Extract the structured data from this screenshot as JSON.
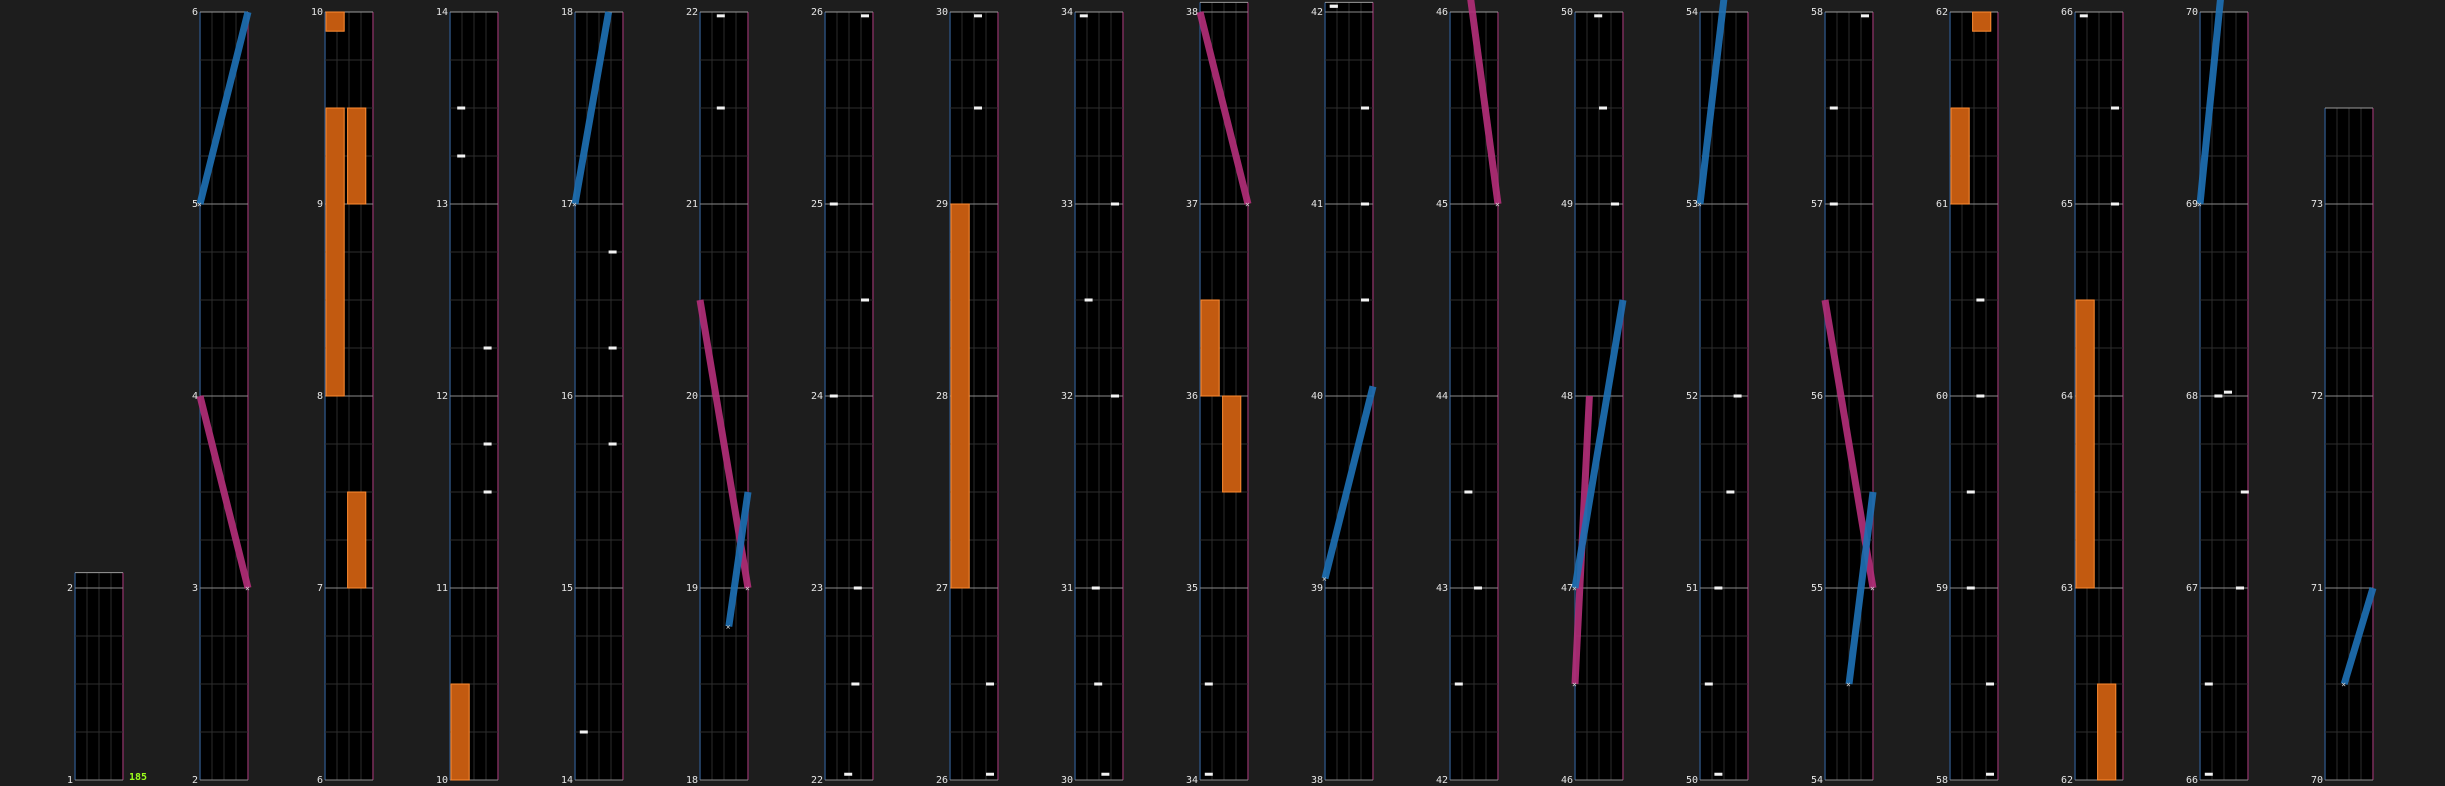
{
  "chart_data": {
    "type": "chart-editor-timeline",
    "combo": "185",
    "measure_labels": [
      {
        "text": "1",
        "beat": 1,
        "c": 0
      },
      {
        "text": "2",
        "beat": 2,
        "c": 0
      },
      {
        "text": "2",
        "beat": 2,
        "c": 1
      },
      {
        "text": "3",
        "beat": 3,
        "c": 1
      },
      {
        "text": "4",
        "beat": 4,
        "c": 1
      },
      {
        "text": "5",
        "beat": 5,
        "c": 1
      },
      {
        "text": "6",
        "beat": 6,
        "c": 1
      },
      {
        "text": "6",
        "beat": 6,
        "c": 2
      },
      {
        "text": "7",
        "beat": 7,
        "c": 2
      },
      {
        "text": "8",
        "beat": 8,
        "c": 2
      },
      {
        "text": "9",
        "beat": 9,
        "c": 2
      },
      {
        "text": "10",
        "beat": 10,
        "c": 2
      },
      {
        "text": "10",
        "beat": 10,
        "c": 3
      },
      {
        "text": "11",
        "beat": 11,
        "c": 3
      },
      {
        "text": "12",
        "beat": 12,
        "c": 3
      },
      {
        "text": "13",
        "beat": 13,
        "c": 3
      },
      {
        "text": "14",
        "beat": 14,
        "c": 3
      },
      {
        "text": "14",
        "beat": 14,
        "c": 4
      },
      {
        "text": "15",
        "beat": 15,
        "c": 4
      },
      {
        "text": "16",
        "beat": 16,
        "c": 4
      },
      {
        "text": "17",
        "beat": 17,
        "c": 4
      },
      {
        "text": "18",
        "beat": 18,
        "c": 4
      },
      {
        "text": "18",
        "beat": 18,
        "c": 5
      },
      {
        "text": "19",
        "beat": 19,
        "c": 5
      },
      {
        "text": "20",
        "beat": 20,
        "c": 5
      },
      {
        "text": "21",
        "beat": 21,
        "c": 5
      },
      {
        "text": "22",
        "beat": 22,
        "c": 5
      },
      {
        "text": "22",
        "beat": 22,
        "c": 6
      },
      {
        "text": "23",
        "beat": 23,
        "c": 6
      },
      {
        "text": "24",
        "beat": 24,
        "c": 6
      },
      {
        "text": "25",
        "beat": 25,
        "c": 6
      },
      {
        "text": "26",
        "beat": 26,
        "c": 6
      },
      {
        "text": "26",
        "beat": 26,
        "c": 7
      },
      {
        "text": "27",
        "beat": 27,
        "c": 7
      },
      {
        "text": "28",
        "beat": 28,
        "c": 7
      },
      {
        "text": "29",
        "beat": 29,
        "c": 7
      },
      {
        "text": "30",
        "beat": 30,
        "c": 7
      },
      {
        "text": "30",
        "beat": 30,
        "c": 8
      },
      {
        "text": "31",
        "beat": 31,
        "c": 8
      },
      {
        "text": "32",
        "beat": 32,
        "c": 8
      },
      {
        "text": "33",
        "beat": 33,
        "c": 8
      },
      {
        "text": "34",
        "beat": 34,
        "c": 8
      },
      {
        "text": "34",
        "beat": 34,
        "c": 9
      },
      {
        "text": "35",
        "beat": 35,
        "c": 9
      },
      {
        "text": "36",
        "beat": 36,
        "c": 9
      },
      {
        "text": "37",
        "beat": 37,
        "c": 9
      },
      {
        "text": "38",
        "beat": 38,
        "c": 9
      },
      {
        "text": "38",
        "beat": 38,
        "c": 10
      },
      {
        "text": "39",
        "beat": 39,
        "c": 10
      },
      {
        "text": "40",
        "beat": 40,
        "c": 10
      },
      {
        "text": "41",
        "beat": 41,
        "c": 10
      },
      {
        "text": "42",
        "beat": 42,
        "c": 10
      },
      {
        "text": "42",
        "beat": 42,
        "c": 11
      },
      {
        "text": "43",
        "beat": 43,
        "c": 11
      },
      {
        "text": "44",
        "beat": 44,
        "c": 11
      },
      {
        "text": "45",
        "beat": 45,
        "c": 11
      },
      {
        "text": "46",
        "beat": 46,
        "c": 11
      },
      {
        "text": "46",
        "beat": 46,
        "c": 12
      },
      {
        "text": "47",
        "beat": 47,
        "c": 12
      },
      {
        "text": "48",
        "beat": 48,
        "c": 12
      },
      {
        "text": "49",
        "beat": 49,
        "c": 12
      },
      {
        "text": "50",
        "beat": 50,
        "c": 12
      },
      {
        "text": "50",
        "beat": 50,
        "c": 13
      },
      {
        "text": "51",
        "beat": 51,
        "c": 13
      },
      {
        "text": "52",
        "beat": 52,
        "c": 13
      },
      {
        "text": "53",
        "beat": 53,
        "c": 13
      },
      {
        "text": "54",
        "beat": 54,
        "c": 13
      },
      {
        "text": "54",
        "beat": 54,
        "c": 14
      },
      {
        "text": "55",
        "beat": 55,
        "c": 14
      },
      {
        "text": "56",
        "beat": 56,
        "c": 14
      },
      {
        "text": "57",
        "beat": 57,
        "c": 14
      },
      {
        "text": "58",
        "beat": 58,
        "c": 14
      },
      {
        "text": "58",
        "beat": 58,
        "c": 15
      },
      {
        "text": "59",
        "beat": 59,
        "c": 15
      },
      {
        "text": "60",
        "beat": 60,
        "c": 15
      },
      {
        "text": "61",
        "beat": 61,
        "c": 15
      },
      {
        "text": "62",
        "beat": 62,
        "c": 15
      },
      {
        "text": "62",
        "beat": 62,
        "c": 16
      },
      {
        "text": "63",
        "beat": 63,
        "c": 16
      },
      {
        "text": "64",
        "beat": 64,
        "c": 16
      },
      {
        "text": "65",
        "beat": 65,
        "c": 16
      },
      {
        "text": "66",
        "beat": 66,
        "c": 16
      },
      {
        "text": "66",
        "beat": 66,
        "c": 17
      },
      {
        "text": "67",
        "beat": 67,
        "c": 17
      },
      {
        "text": "68",
        "beat": 68,
        "c": 17
      },
      {
        "text": "69",
        "beat": 69,
        "c": 17
      },
      {
        "text": "70",
        "beat": 70,
        "c": 17
      },
      {
        "text": "70",
        "beat": 70,
        "c": 18
      },
      {
        "text": "71",
        "beat": 71,
        "c": 18
      },
      {
        "text": "72",
        "beat": 72,
        "c": 18
      },
      {
        "text": "73",
        "beat": 73,
        "c": 18
      }
    ],
    "columns": [
      {
        "c": 0,
        "start": 1,
        "end": 2.08
      },
      {
        "c": 1,
        "start": 2,
        "end": 6
      },
      {
        "c": 2,
        "start": 6,
        "end": 10
      },
      {
        "c": 3,
        "start": 10,
        "end": 14
      },
      {
        "c": 4,
        "start": 14,
        "end": 18
      },
      {
        "c": 5,
        "start": 18,
        "end": 22
      },
      {
        "c": 6,
        "start": 22,
        "end": 26
      },
      {
        "c": 7,
        "start": 26,
        "end": 30
      },
      {
        "c": 8,
        "start": 30,
        "end": 34
      },
      {
        "c": 9,
        "start": 34,
        "end": 38.05
      },
      {
        "c": 10,
        "start": 38,
        "end": 42.05
      },
      {
        "c": 11,
        "start": 42,
        "end": 46
      },
      {
        "c": 12,
        "start": 46,
        "end": 50
      },
      {
        "c": 13,
        "start": 50,
        "end": 54
      },
      {
        "c": 14,
        "start": 54,
        "end": 58
      },
      {
        "c": 15,
        "start": 58,
        "end": 62
      },
      {
        "c": 16,
        "start": 62,
        "end": 66
      },
      {
        "c": 17,
        "start": 66,
        "end": 70
      },
      {
        "c": 18,
        "start": 70,
        "end": 73.5
      }
    ],
    "slides": [
      {
        "color": "blue",
        "b1": 5,
        "b2": 6,
        "l1": 0,
        "l2": 1
      },
      {
        "color": "pink",
        "b1": 3,
        "b2": 4,
        "l1": 1,
        "l2": 0
      },
      {
        "color": "blue",
        "b1": 17,
        "b2": 18,
        "l1": 0,
        "l2": 0.7
      },
      {
        "color": "pink",
        "b1": 19,
        "b2": 20.5,
        "l1": 1,
        "l2": 0
      },
      {
        "color": "blue",
        "b1": 18.8,
        "b2": 19.5,
        "l1": 0.6,
        "l2": 1
      },
      {
        "color": "pink",
        "b1": 37,
        "b2": 38,
        "l1": 1,
        "l2": 0
      },
      {
        "color": "blue",
        "b1": 39.05,
        "b2": 40.05,
        "l1": 0,
        "l2": 1
      },
      {
        "color": "pink",
        "b1": 45,
        "b2": 46.5,
        "l1": 1,
        "l2": 0.2
      },
      {
        "color": "pink",
        "b1": 46.5,
        "b2": 48,
        "l1": 0,
        "l2": 0.3
      },
      {
        "color": "blue",
        "b1": 47,
        "b2": 48.5,
        "l1": 0,
        "l2": 1
      },
      {
        "color": "blue",
        "b1": 53,
        "b2": 54.5,
        "l1": 0,
        "l2": 0.7
      },
      {
        "color": "pink",
        "b1": 55,
        "b2": 56.5,
        "l1": 1,
        "l2": 0
      },
      {
        "color": "blue",
        "b1": 54.5,
        "b2": 55.5,
        "l1": 0.5,
        "l2": 1
      },
      {
        "color": "blue",
        "b1": 69,
        "b2": 70.5,
        "l1": 0,
        "l2": 0.6
      },
      {
        "color": "blue",
        "b1": 70.5,
        "b2": 71,
        "l1": 0.4,
        "l2": 1
      }
    ],
    "holds": [
      {
        "b1": 8,
        "b2": 9.5,
        "lane": 0,
        "w": 0.4
      },
      {
        "b1": 7,
        "b2": 7.5,
        "lane": 0.45,
        "w": 0.4
      },
      {
        "b1": 9,
        "b2": 9.5,
        "lane": 0.45,
        "w": 0.4
      },
      {
        "b1": 9.9,
        "b2": 10.6,
        "lane": 0,
        "w": 0.4
      },
      {
        "b1": 10,
        "b2": 10.5,
        "lane": 0,
        "w": 0.4
      },
      {
        "b1": 27,
        "b2": 29,
        "lane": 0,
        "w": 0.4
      },
      {
        "b1": 35.5,
        "b2": 36,
        "lane": 0.45,
        "w": 0.4
      },
      {
        "b1": 36,
        "b2": 36.5,
        "lane": 0,
        "w": 0.4
      },
      {
        "b1": 61,
        "b2": 61.5,
        "lane": 0,
        "w": 0.4
      },
      {
        "b1": 61.9,
        "b2": 62.6,
        "lane": 0.45,
        "w": 0.4
      },
      {
        "b1": 63,
        "b2": 64.5,
        "lane": 0,
        "w": 0.4
      },
      {
        "b1": 62,
        "b2": 62.5,
        "lane": 0.45,
        "w": 0.4
      }
    ],
    "taps": [
      {
        "b": 13.25,
        "lane": 0.15
      },
      {
        "b": 13.5,
        "lane": 0.15
      },
      {
        "b": 11.5,
        "lane": 0.7
      },
      {
        "b": 11.75,
        "lane": 0.7
      },
      {
        "b": 12.25,
        "lane": 0.7
      },
      {
        "b": 14.25,
        "lane": 0.1
      },
      {
        "b": 15.75,
        "lane": 0.7
      },
      {
        "b": 16.25,
        "lane": 0.7
      },
      {
        "b": 16.75,
        "lane": 0.7
      },
      {
        "b": 21.5,
        "lane": 0.35
      },
      {
        "b": 21.98,
        "lane": 0.35
      },
      {
        "b": 22.03,
        "lane": 0.4
      },
      {
        "b": 22.5,
        "lane": 0.55
      },
      {
        "b": 23,
        "lane": 0.6
      },
      {
        "b": 24,
        "lane": 0.1
      },
      {
        "b": 24.5,
        "lane": 0.75
      },
      {
        "b": 25,
        "lane": 0.1
      },
      {
        "b": 25.98,
        "lane": 0.75
      },
      {
        "b": 26.03,
        "lane": 0.75
      },
      {
        "b": 26.5,
        "lane": 0.75
      },
      {
        "b": 29.5,
        "lane": 0.5
      },
      {
        "b": 29.98,
        "lane": 0.5
      },
      {
        "b": 30.03,
        "lane": 0.55
      },
      {
        "b": 30.5,
        "lane": 0.4
      },
      {
        "b": 31,
        "lane": 0.35
      },
      {
        "b": 32,
        "lane": 0.75
      },
      {
        "b": 32.5,
        "lane": 0.2
      },
      {
        "b": 33,
        "lane": 0.75
      },
      {
        "b": 33.98,
        "lane": 0.1
      },
      {
        "b": 34.03,
        "lane": 0.1
      },
      {
        "b": 34.5,
        "lane": 0.1
      },
      {
        "b": 40.5,
        "lane": 0.75
      },
      {
        "b": 41,
        "lane": 0.75
      },
      {
        "b": 41.5,
        "lane": 0.75
      },
      {
        "b": 42.03,
        "lane": 0.1
      },
      {
        "b": 42.03,
        "lane": 0.1
      },
      {
        "b": 42.5,
        "lane": 0.1
      },
      {
        "b": 43,
        "lane": 0.5
      },
      {
        "b": 43.5,
        "lane": 0.3
      },
      {
        "b": 49,
        "lane": 0.75
      },
      {
        "b": 49.5,
        "lane": 0.5
      },
      {
        "b": 49.98,
        "lane": 0.4
      },
      {
        "b": 50.03,
        "lane": 0.3
      },
      {
        "b": 50.5,
        "lane": 0.1
      },
      {
        "b": 51,
        "lane": 0.3
      },
      {
        "b": 51.5,
        "lane": 0.55
      },
      {
        "b": 52,
        "lane": 0.7
      },
      {
        "b": 57,
        "lane": 0.1
      },
      {
        "b": 57.5,
        "lane": 0.1
      },
      {
        "b": 57.98,
        "lane": 0.75
      },
      {
        "b": 58.03,
        "lane": 0.75
      },
      {
        "b": 58.5,
        "lane": 0.75
      },
      {
        "b": 59,
        "lane": 0.35
      },
      {
        "b": 59.5,
        "lane": 0.35
      },
      {
        "b": 60,
        "lane": 0.55
      },
      {
        "b": 60.5,
        "lane": 0.55
      },
      {
        "b": 65,
        "lane": 0.75
      },
      {
        "b": 65.5,
        "lane": 0.75
      },
      {
        "b": 65.98,
        "lane": 0.1
      },
      {
        "b": 66.03,
        "lane": 0.1
      },
      {
        "b": 66.5,
        "lane": 0.1
      },
      {
        "b": 67,
        "lane": 0.75
      },
      {
        "b": 67.5,
        "lane": 0.85
      },
      {
        "b": 68,
        "lane": 0.3
      },
      {
        "b": 68.02,
        "lane": 0.5
      }
    ]
  }
}
